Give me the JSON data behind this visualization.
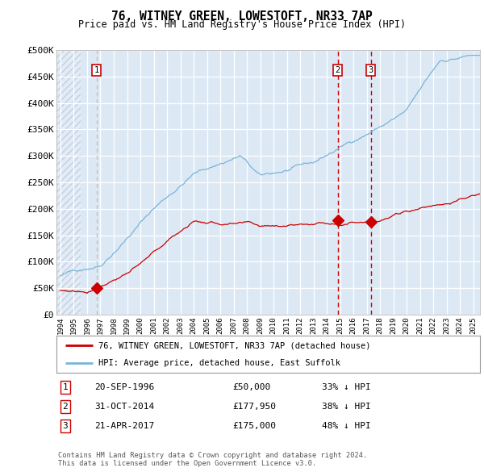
{
  "title": "76, WITNEY GREEN, LOWESTOFT, NR33 7AP",
  "subtitle": "Price paid vs. HM Land Registry's House Price Index (HPI)",
  "bg_color": "#dce9f5",
  "hatch_color": "#c8d8ec",
  "grid_color": "#ffffff",
  "red_line_color": "#cc0000",
  "blue_line_color": "#7ab4d8",
  "sale_marker_color": "#cc0000",
  "vline_color": "#cc0000",
  "ylim": [
    0,
    500000
  ],
  "yticks": [
    0,
    50000,
    100000,
    150000,
    200000,
    250000,
    300000,
    350000,
    400000,
    450000,
    500000
  ],
  "ytick_labels": [
    "£0",
    "£50K",
    "£100K",
    "£150K",
    "£200K",
    "£250K",
    "£300K",
    "£350K",
    "£400K",
    "£450K",
    "£500K"
  ],
  "xlim_start": 1993.7,
  "xlim_end": 2025.5,
  "hatch_end": 1995.5,
  "xticks": [
    1994,
    1995,
    1996,
    1997,
    1998,
    1999,
    2000,
    2001,
    2002,
    2003,
    2004,
    2005,
    2006,
    2007,
    2008,
    2009,
    2010,
    2011,
    2012,
    2013,
    2014,
    2015,
    2016,
    2017,
    2018,
    2019,
    2020,
    2021,
    2022,
    2023,
    2024,
    2025
  ],
  "sale1_x": 1996.72,
  "sale1_y": 50000,
  "sale1_label": "1",
  "sale2_x": 2014.83,
  "sale2_y": 177950,
  "sale2_label": "2",
  "sale3_x": 2017.31,
  "sale3_y": 175000,
  "sale3_label": "3",
  "legend_line1": "76, WITNEY GREEN, LOWESTOFT, NR33 7AP (detached house)",
  "legend_line2": "HPI: Average price, detached house, East Suffolk",
  "table_data": [
    [
      "1",
      "20-SEP-1996",
      "£50,000",
      "33% ↓ HPI"
    ],
    [
      "2",
      "31-OCT-2014",
      "£177,950",
      "38% ↓ HPI"
    ],
    [
      "3",
      "21-APR-2017",
      "£175,000",
      "48% ↓ HPI"
    ]
  ],
  "footer": "Contains HM Land Registry data © Crown copyright and database right 2024.\nThis data is licensed under the Open Government Licence v3.0."
}
